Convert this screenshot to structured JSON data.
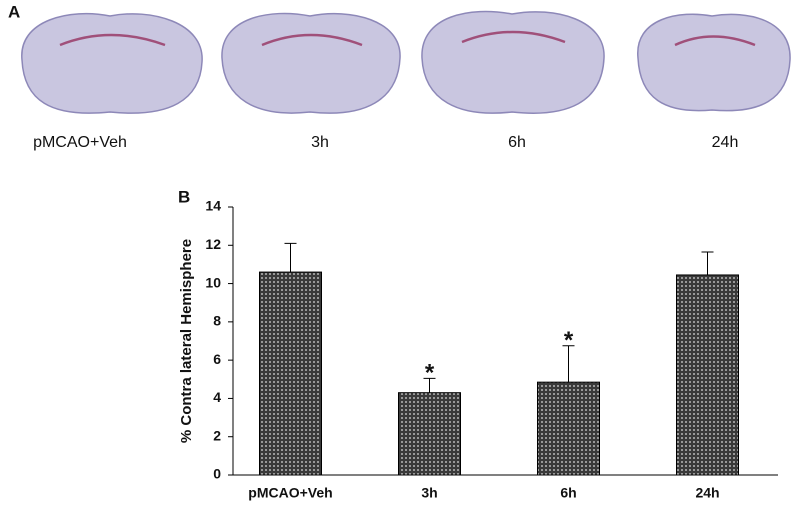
{
  "panel_a": {
    "label": "A",
    "captions": [
      "pMCAO+Veh",
      "3h",
      "6h",
      "24h"
    ]
  },
  "chart_data": {
    "type": "bar",
    "panel_label": "B",
    "y_label": "% Contra lateral Hemisphere",
    "categories": [
      "pMCAO+Veh",
      "3h",
      "6h",
      "24h"
    ],
    "values": [
      10.6,
      4.3,
      4.85,
      10.45
    ],
    "errors": [
      1.5,
      0.75,
      1.9,
      1.2
    ],
    "significance": [
      null,
      "*",
      "*",
      null
    ],
    "color": "#3a3a3a",
    "ylim": [
      0,
      14
    ],
    "yticks": [
      0,
      2,
      4,
      6,
      8,
      10,
      12,
      14
    ]
  }
}
